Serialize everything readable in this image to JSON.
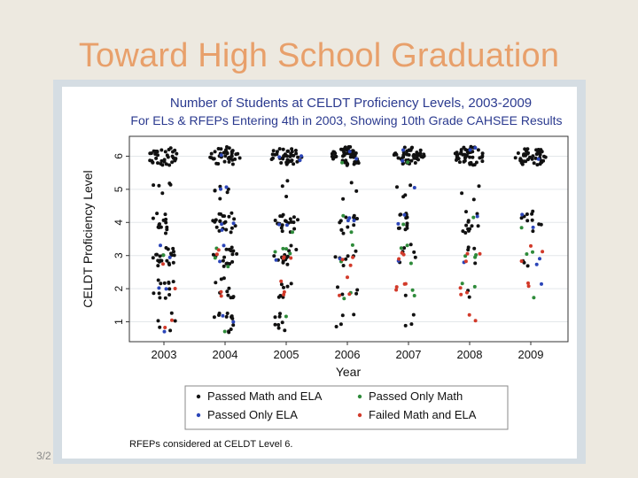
{
  "slide": {
    "title": "Toward High School Graduation",
    "date_fragment": "3/2"
  },
  "chart_data": {
    "type": "scatter",
    "title": "Number of Students at CELDT Proficiency Levels, 2003-2009",
    "subtitle": "For ELs & RFEPs Entering 4th in 2003, Showing 10th Grade CAHSEE Results",
    "xlabel": "Year",
    "ylabel": "CELDT Proficiency Level",
    "x_categories": [
      "2003",
      "2004",
      "2005",
      "2006",
      "2007",
      "2008",
      "2009"
    ],
    "y_ticks": [
      1,
      2,
      3,
      4,
      5,
      6
    ],
    "ylim": [
      0.4,
      6.6
    ],
    "grid": true,
    "jitter": true,
    "legend_position": "bottom",
    "note": "RFEPs considered at CELDT Level 6.",
    "colors": {
      "passed_math_ela": "#111111",
      "passed_only_math": "#2e8b3a",
      "passed_only_ela": "#2b45b8",
      "failed_math_ela": "#d23a2a"
    },
    "series": [
      {
        "name": "Passed Math and ELA",
        "color_key": "passed_math_ela",
        "counts": [
          [
            5,
            12,
            8,
            4,
            3,
            0,
            0
          ],
          [
            12,
            10,
            7,
            4,
            1,
            2,
            0
          ],
          [
            22,
            16,
            15,
            7,
            6,
            4,
            3
          ],
          [
            14,
            22,
            20,
            12,
            12,
            12,
            10
          ],
          [
            5,
            6,
            3,
            3,
            4,
            3,
            0
          ],
          [
            36,
            38,
            42,
            52,
            48,
            46,
            44
          ]
        ]
      },
      {
        "name": "Passed Only Math",
        "color_key": "passed_only_math",
        "counts": [
          [
            0,
            1,
            1,
            0,
            0,
            0,
            0
          ],
          [
            0,
            0,
            0,
            2,
            2,
            2,
            1
          ],
          [
            1,
            3,
            4,
            2,
            3,
            3,
            2
          ],
          [
            0,
            0,
            1,
            2,
            1,
            1,
            1
          ],
          [
            0,
            0,
            0,
            0,
            0,
            0,
            0
          ],
          [
            0,
            0,
            0,
            1,
            1,
            0,
            0
          ]
        ]
      },
      {
        "name": "Passed Only ELA",
        "color_key": "passed_only_ela",
        "counts": [
          [
            1,
            2,
            0,
            0,
            0,
            0,
            0
          ],
          [
            2,
            0,
            0,
            0,
            0,
            0,
            1
          ],
          [
            2,
            2,
            1,
            1,
            1,
            1,
            2
          ],
          [
            0,
            3,
            2,
            3,
            2,
            1,
            2
          ],
          [
            0,
            2,
            0,
            0,
            1,
            0,
            0
          ],
          [
            0,
            1,
            3,
            2,
            2,
            2,
            1
          ]
        ]
      },
      {
        "name": "Failed Math and ELA",
        "color_key": "failed_math_ela",
        "counts": [
          [
            2,
            0,
            0,
            0,
            0,
            2,
            0
          ],
          [
            1,
            2,
            3,
            3,
            4,
            3,
            2
          ],
          [
            1,
            2,
            3,
            3,
            3,
            3,
            3
          ],
          [
            0,
            0,
            0,
            0,
            0,
            0,
            0
          ],
          [
            0,
            0,
            0,
            0,
            0,
            0,
            0
          ],
          [
            0,
            0,
            0,
            0,
            0,
            0,
            0
          ]
        ]
      }
    ]
  }
}
